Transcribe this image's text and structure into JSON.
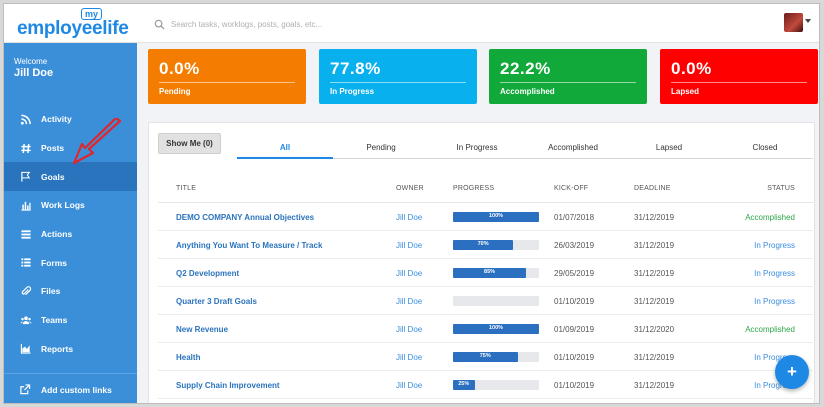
{
  "app": {
    "logo_my": "my",
    "logo_word": "employeelife"
  },
  "search": {
    "placeholder": "Search tasks, worklogs, posts, goals, etc..."
  },
  "sidebar": {
    "welcome": "Welcome",
    "user": "Jill Doe",
    "items": [
      {
        "label": "Activity",
        "icon": "rss-icon"
      },
      {
        "label": "Posts",
        "icon": "hashtag-icon"
      },
      {
        "label": "Goals",
        "icon": "flag-icon",
        "active": true
      },
      {
        "label": "Work Logs",
        "icon": "bar-chart-icon"
      },
      {
        "label": "Actions",
        "icon": "list-icon"
      },
      {
        "label": "Forms",
        "icon": "form-list-icon"
      },
      {
        "label": "Files",
        "icon": "paperclip-icon"
      },
      {
        "label": "Teams",
        "icon": "users-icon"
      },
      {
        "label": "Reports",
        "icon": "area-chart-icon"
      }
    ],
    "custom_links": "Add custom links"
  },
  "cards": [
    {
      "value": "0.0%",
      "label": "Pending",
      "color": "#f47c00"
    },
    {
      "value": "77.8%",
      "label": "In Progress",
      "color": "#08b0ee"
    },
    {
      "value": "22.2%",
      "label": "Accomplished",
      "color": "#11a93a"
    },
    {
      "value": "0.0%",
      "label": "Lapsed",
      "color": "#ff0000"
    }
  ],
  "filter": {
    "show_me": "Show Me (0)"
  },
  "tabs": [
    "All",
    "Pending",
    "In Progress",
    "Accomplished",
    "Lapsed",
    "Closed"
  ],
  "table": {
    "headers": {
      "title": "TITLE",
      "owner": "OWNER",
      "progress": "PROGRESS",
      "kickoff": "KICK-OFF",
      "deadline": "DEADLINE",
      "status": "STATUS"
    },
    "rows": [
      {
        "title": "DEMO COMPANY Annual Objectives",
        "owner": "Jill Doe",
        "progress": 100,
        "progress_label": "100%",
        "kickoff": "01/07/2018",
        "deadline": "31/12/2019",
        "status": "Accomplished"
      },
      {
        "title": "Anything You Want To Measure / Track",
        "owner": "Jill Doe",
        "progress": 70,
        "progress_label": "70%",
        "kickoff": "26/03/2019",
        "deadline": "31/12/2019",
        "status": "In Progress"
      },
      {
        "title": "Q2 Development",
        "owner": "Jill Doe",
        "progress": 85,
        "progress_label": "85%",
        "kickoff": "29/05/2019",
        "deadline": "31/12/2019",
        "status": "In Progress"
      },
      {
        "title": "Quarter 3 Draft Goals",
        "owner": "Jill Doe",
        "progress": 0,
        "progress_label": "",
        "kickoff": "01/10/2019",
        "deadline": "31/12/2019",
        "status": "In Progress"
      },
      {
        "title": "New Revenue",
        "owner": "Jill Doe",
        "progress": 100,
        "progress_label": "100%",
        "kickoff": "01/09/2019",
        "deadline": "31/12/2020",
        "status": "Accomplished"
      },
      {
        "title": "Health",
        "owner": "Jill Doe",
        "progress": 75,
        "progress_label": "75%",
        "kickoff": "01/10/2019",
        "deadline": "31/12/2019",
        "status": "In Progress"
      },
      {
        "title": "Supply Chain Improvement",
        "owner": "Jill Doe",
        "progress": 25,
        "progress_label": "25%",
        "kickoff": "01/10/2019",
        "deadline": "31/12/2019",
        "status": "In Progress"
      }
    ]
  },
  "fab": {
    "label": "+"
  }
}
